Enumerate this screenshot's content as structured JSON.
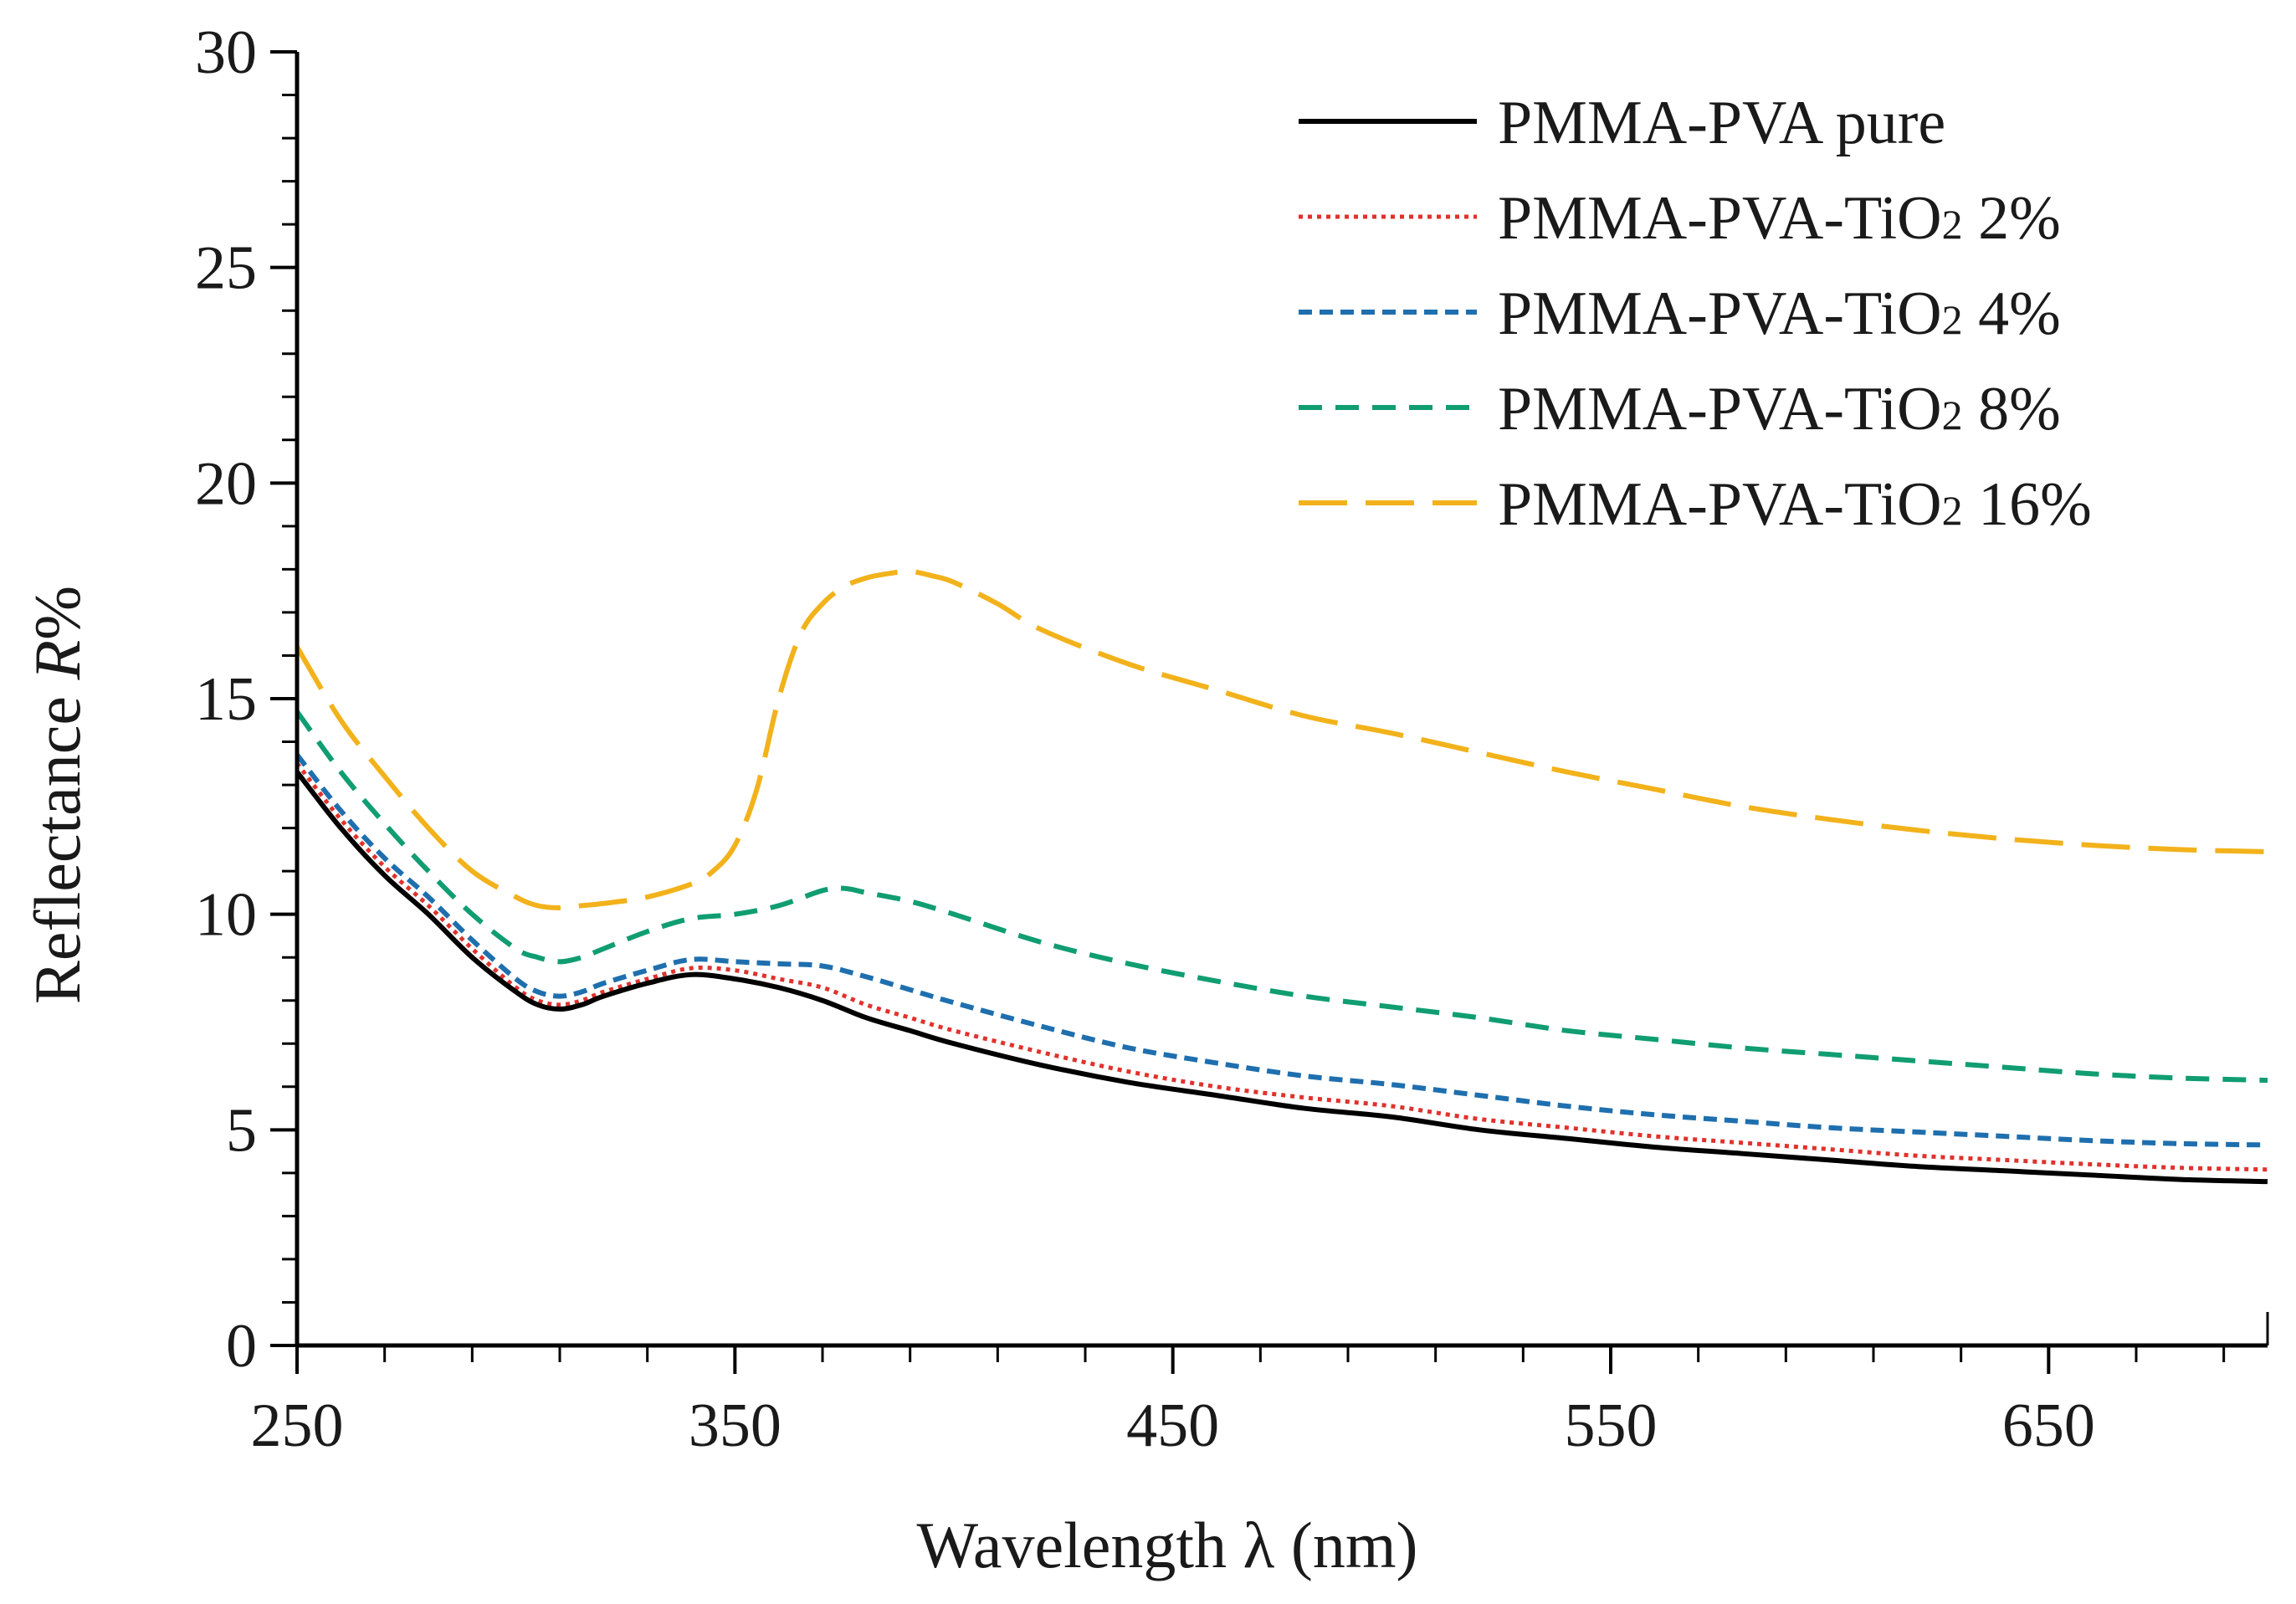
{
  "chart_data": {
    "type": "line",
    "title": "",
    "xlabel": "Wavelength λ (nm)",
    "ylabel_main": "Reflectance ",
    "ylabel_symbol": "R",
    "ylabel_suffix": "%",
    "xlim": [
      250,
      700
    ],
    "ylim": [
      0,
      30
    ],
    "xticks": [
      250,
      350,
      450,
      550,
      650
    ],
    "yticks": [
      0,
      5,
      10,
      15,
      20,
      25,
      30
    ],
    "xtick_labels": [
      "250",
      "350",
      "450",
      "550",
      "650"
    ],
    "ytick_labels": [
      "0",
      "5",
      "10",
      "15",
      "20",
      "25",
      "30"
    ],
    "grid": false,
    "legend_position": "top-right",
    "series": [
      {
        "name": "PMMA-PVA pure",
        "label_parts": [
          "PMMA-PVA pure"
        ],
        "color": "#000000",
        "style": "solid",
        "x": [
          250,
          260,
          270,
          280,
          290,
          300,
          305,
          310,
          315,
          320,
          330,
          340,
          350,
          360,
          370,
          380,
          390,
          400,
          420,
          440,
          460,
          480,
          500,
          520,
          540,
          560,
          580,
          600,
          620,
          640,
          660,
          680,
          700
        ],
        "y": [
          13.3,
          12.0,
          10.9,
          10.0,
          9.0,
          8.2,
          7.9,
          7.8,
          7.9,
          8.1,
          8.4,
          8.6,
          8.5,
          8.3,
          8.0,
          7.6,
          7.3,
          7.0,
          6.5,
          6.1,
          5.8,
          5.5,
          5.3,
          5.0,
          4.8,
          4.6,
          4.45,
          4.3,
          4.15,
          4.05,
          3.95,
          3.85,
          3.8
        ]
      },
      {
        "name": "PMMA-PVA-TiO2 2%",
        "label_parts": [
          "PMMA-PVA-TiO",
          "2",
          " 2%"
        ],
        "color": "#e0322c",
        "style": "dotted",
        "x": [
          250,
          260,
          270,
          280,
          290,
          300,
          305,
          310,
          315,
          320,
          330,
          340,
          350,
          360,
          370,
          380,
          390,
          400,
          420,
          440,
          460,
          480,
          500,
          520,
          540,
          560,
          580,
          600,
          620,
          640,
          660,
          680,
          700
        ],
        "y": [
          13.5,
          12.2,
          11.1,
          10.2,
          9.2,
          8.3,
          8.0,
          7.9,
          8.0,
          8.2,
          8.5,
          8.75,
          8.7,
          8.5,
          8.3,
          7.9,
          7.6,
          7.3,
          6.8,
          6.35,
          6.0,
          5.75,
          5.55,
          5.25,
          5.05,
          4.85,
          4.7,
          4.55,
          4.4,
          4.3,
          4.2,
          4.12,
          4.08
        ]
      },
      {
        "name": "PMMA-PVA-TiO2 4%",
        "label_parts": [
          "PMMA-PVA-TiO",
          "2",
          " 4%"
        ],
        "color": "#1f6fae",
        "style": "short-dash",
        "x": [
          250,
          260,
          270,
          280,
          290,
          300,
          305,
          310,
          315,
          320,
          330,
          340,
          350,
          360,
          370,
          380,
          390,
          400,
          420,
          440,
          460,
          480,
          500,
          520,
          540,
          560,
          580,
          600,
          620,
          640,
          660,
          680,
          700
        ],
        "y": [
          13.7,
          12.4,
          11.3,
          10.4,
          9.4,
          8.5,
          8.2,
          8.1,
          8.2,
          8.4,
          8.7,
          8.95,
          8.9,
          8.85,
          8.8,
          8.55,
          8.25,
          7.95,
          7.4,
          6.9,
          6.55,
          6.25,
          6.05,
          5.8,
          5.55,
          5.35,
          5.2,
          5.05,
          4.95,
          4.85,
          4.75,
          4.68,
          4.65
        ]
      },
      {
        "name": "PMMA-PVA-TiO2 8%",
        "label_parts": [
          "PMMA-PVA-TiO",
          "2",
          " 8%"
        ],
        "color": "#109d72",
        "style": "dash",
        "x": [
          250,
          260,
          270,
          280,
          290,
          300,
          305,
          310,
          315,
          320,
          330,
          340,
          350,
          360,
          370,
          375,
          380,
          390,
          400,
          420,
          440,
          460,
          480,
          500,
          520,
          540,
          560,
          580,
          600,
          620,
          640,
          660,
          680,
          700
        ],
        "y": [
          14.7,
          13.3,
          12.1,
          11.0,
          10.0,
          9.2,
          9.0,
          8.9,
          9.0,
          9.2,
          9.6,
          9.9,
          10.0,
          10.2,
          10.55,
          10.6,
          10.5,
          10.3,
          10.0,
          9.35,
          8.85,
          8.45,
          8.1,
          7.85,
          7.6,
          7.3,
          7.1,
          6.9,
          6.75,
          6.6,
          6.45,
          6.3,
          6.2,
          6.15
        ]
      },
      {
        "name": "PMMA-PVA-TiO2 16%",
        "label_parts": [
          "PMMA-PVA-TiO",
          "2",
          " 16%"
        ],
        "color": "#f2b21b",
        "style": "long-dash",
        "x": [
          250,
          260,
          270,
          280,
          290,
          300,
          305,
          310,
          315,
          320,
          330,
          340,
          345,
          350,
          355,
          360,
          365,
          370,
          375,
          380,
          385,
          390,
          395,
          400,
          410,
          420,
          440,
          460,
          480,
          500,
          520,
          540,
          560,
          580,
          600,
          620,
          640,
          660,
          680,
          700
        ],
        "y": [
          16.2,
          14.5,
          13.2,
          12.0,
          11.0,
          10.4,
          10.2,
          10.15,
          10.2,
          10.25,
          10.4,
          10.7,
          11.0,
          11.6,
          12.9,
          15.0,
          16.5,
          17.2,
          17.6,
          17.8,
          17.9,
          17.95,
          17.85,
          17.7,
          17.2,
          16.6,
          15.8,
          15.2,
          14.6,
          14.2,
          13.75,
          13.3,
          12.9,
          12.5,
          12.2,
          11.95,
          11.75,
          11.6,
          11.5,
          11.45
        ]
      }
    ]
  }
}
